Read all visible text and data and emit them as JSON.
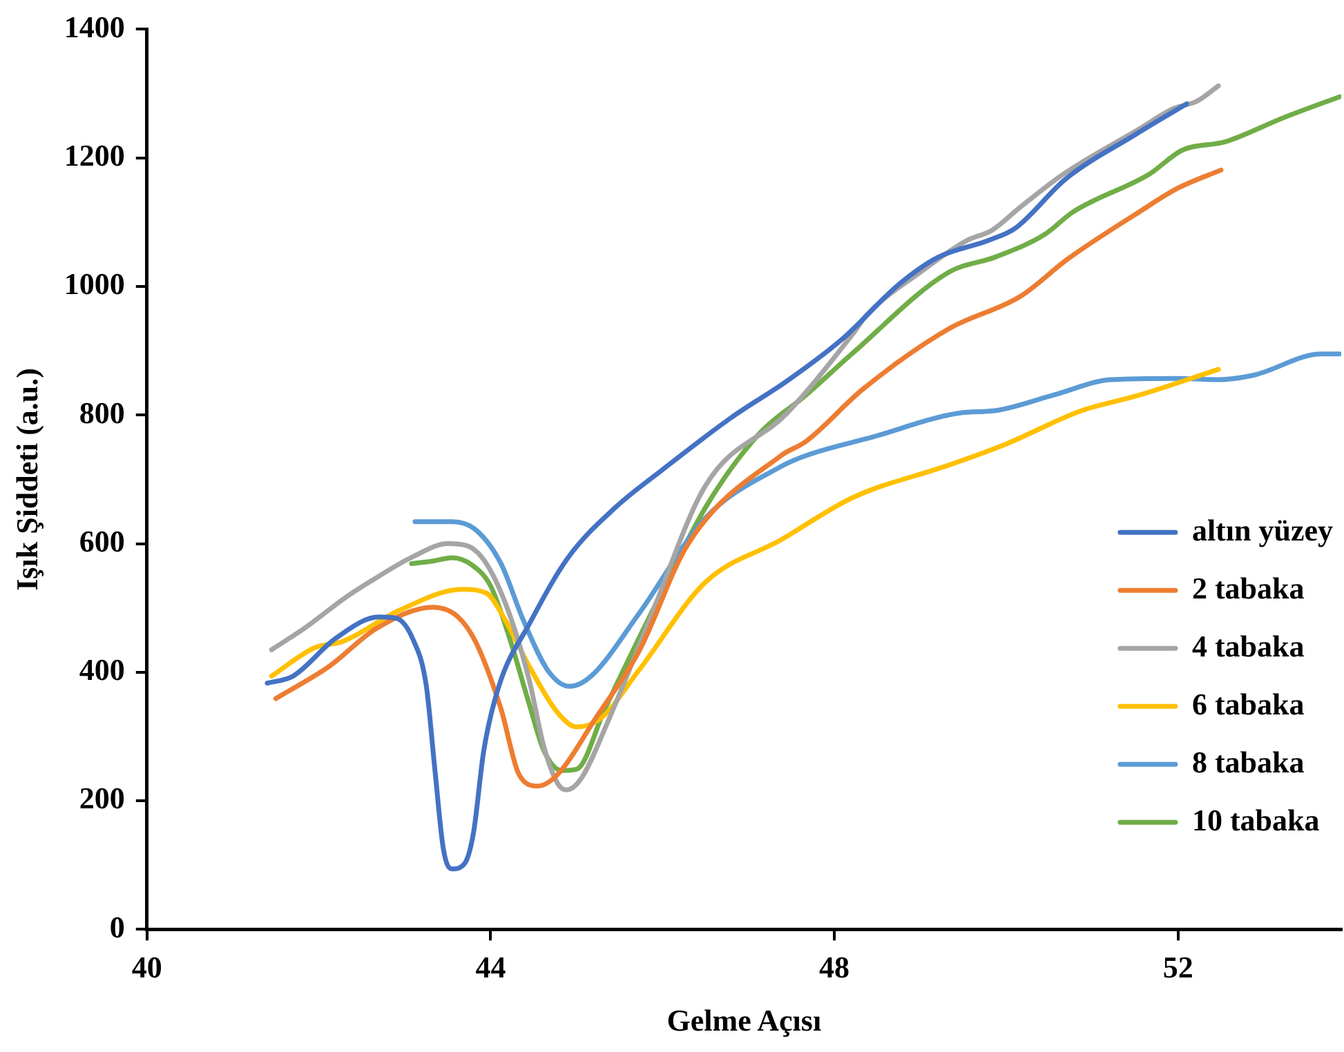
{
  "chart_data": {
    "type": "line",
    "xlabel": "Gelme Açısı",
    "ylabel": "Işık Şiddeti (a.u.)",
    "xlim": [
      40,
      53.9
    ],
    "xticks": [
      40,
      44,
      48,
      52
    ],
    "ylim": [
      0,
      1400
    ],
    "yticks": [
      0,
      200,
      400,
      600,
      800,
      1000,
      1200,
      1400
    ],
    "grid": false,
    "legend": "right",
    "marker": "none",
    "line_style": "solid",
    "series": [
      {
        "name": "altın yüzey",
        "color": "#4472c4",
        "x": [
          41.4,
          41.7,
          42.2,
          42.7,
          42.9,
          43.1,
          43.25,
          43.35,
          43.45,
          43.55,
          43.7,
          43.8,
          43.92,
          44.1,
          44.45,
          44.9,
          45.45,
          46,
          46.8,
          47.45,
          48.1,
          48.75,
          49.2,
          49.8,
          50.1,
          50.7,
          51.5,
          52.1
        ],
        "values": [
          383,
          394,
          453,
          486,
          484,
          450,
          380,
          250,
          125,
          94,
          103,
          150,
          278,
          380,
          475,
          578,
          656,
          715,
          796,
          853,
          919,
          1003,
          1045,
          1072,
          1090,
          1168,
          1236,
          1284
        ]
      },
      {
        "name": "2 tabaka",
        "color": "#ed7d31",
        "x": [
          41.5,
          42.12,
          42.67,
          43.33,
          43.62,
          43.83,
          44.12,
          44.33,
          44.55,
          44.78,
          45.22,
          45.72,
          46.3,
          47.38,
          47.67,
          48.33,
          49.33,
          50.17,
          50.72,
          51.55,
          52,
          52.5
        ],
        "values": [
          359,
          409,
          468,
          501,
          486,
          446,
          343,
          241,
          223,
          241,
          328,
          431,
          600,
          737,
          759,
          840,
          934,
          985,
          1043,
          1116,
          1153,
          1181
        ]
      },
      {
        "name": "4 tabaka",
        "color": "#a5a5a5",
        "x": [
          41.45,
          41.83,
          42.33,
          42.67,
          43.1,
          43.5,
          43.72,
          43.95,
          44.22,
          44.45,
          44.62,
          44.78,
          44.88,
          45.05,
          45.38,
          45.83,
          46.5,
          47.45,
          48.22,
          48.38,
          49,
          49.55,
          49.83,
          50.17,
          50.67,
          51.55,
          51.95,
          52.22,
          52.47
        ],
        "values": [
          435,
          468,
          518,
          547,
          580,
          600,
          597,
          569,
          490,
          387,
          284,
          227,
          217,
          234,
          328,
          475,
          690,
          803,
          927,
          956,
          1022,
          1072,
          1087,
          1124,
          1175,
          1245,
          1277,
          1288,
          1312
        ]
      },
      {
        "name": "6 tabaka",
        "color": "#ffc000",
        "x": [
          41.45,
          41.95,
          42.28,
          42.95,
          43.67,
          43.95,
          44.17,
          44.45,
          44.78,
          45,
          45.28,
          45.72,
          46.5,
          47.38,
          48.22,
          49.33,
          50,
          50.88,
          51.55,
          52.47
        ],
        "values": [
          394,
          438,
          448,
          497,
          529,
          523,
          481,
          409,
          337,
          315,
          328,
          402,
          540,
          606,
          672,
          722,
          755,
          807,
          831,
          871
        ]
      },
      {
        "name": "8 tabaka",
        "color": "#5b9bd5",
        "x": [
          43.12,
          43.55,
          43.83,
          44.12,
          44.38,
          44.67,
          44.92,
          45.17,
          45.72,
          46.5,
          47.38,
          47.67,
          48.45,
          49.45,
          49.88,
          50.55,
          51.22,
          52,
          52.45,
          52.88,
          53.67,
          53.88
        ],
        "values": [
          634,
          634,
          621,
          569,
          481,
          402,
          378,
          394,
          490,
          640,
          720,
          737,
          766,
          803,
          807,
          831,
          855,
          857,
          855,
          862,
          895,
          895
        ]
      },
      {
        "name": "10 tabaka",
        "color": "#70ad47",
        "x": [
          43.08,
          43.33,
          43.55,
          43.78,
          44,
          44.22,
          44.45,
          44.62,
          44.83,
          45,
          45.33,
          45.83,
          46.5,
          47.12,
          47.67,
          48.22,
          49.33,
          49.88,
          50.45,
          50.78,
          51.67,
          52.05,
          52.55,
          53.22,
          53.88
        ],
        "values": [
          569,
          573,
          578,
          567,
          534,
          453,
          350,
          278,
          247,
          249,
          343,
          481,
          656,
          770,
          831,
          897,
          1022,
          1046,
          1081,
          1116,
          1175,
          1212,
          1225,
          1262,
          1295
        ]
      }
    ]
  }
}
